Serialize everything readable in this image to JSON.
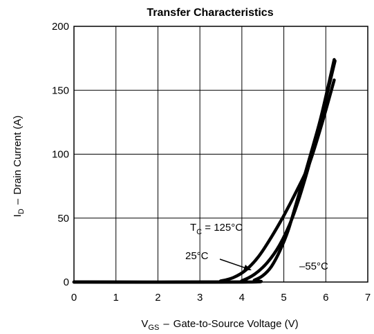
{
  "chart_data": {
    "type": "line",
    "title": "Transfer Characteristics",
    "xlabel": {
      "prefix": "V",
      "subscript": "GS",
      "text": "Gate-to-Source Voltage (V)"
    },
    "ylabel": {
      "prefix": "I",
      "subscript": "D",
      "text": "Drain Current (A)"
    },
    "xlim": [
      0,
      7
    ],
    "ylim": [
      0,
      200
    ],
    "xticks": [
      0,
      1,
      2,
      3,
      4,
      5,
      6,
      7
    ],
    "yticks": [
      0,
      50,
      100,
      150,
      200
    ],
    "grid": true,
    "series": [
      {
        "name": "T_C = 125°C",
        "x": [
          0,
          3.3,
          3.5,
          3.8,
          4.1,
          4.4,
          4.7,
          5.0,
          5.3,
          5.6,
          5.9,
          6.2
        ],
        "y": [
          0,
          0,
          0.8,
          3.5,
          9.5,
          20,
          35,
          52,
          71,
          92,
          123,
          158
        ]
      },
      {
        "name": "25°C",
        "x": [
          0,
          3.8,
          4.0,
          4.3,
          4.6,
          4.9,
          5.2,
          5.5,
          5.8,
          6.0,
          6.22
        ],
        "y": [
          0,
          0,
          1,
          6,
          15,
          29,
          50,
          80,
          116,
          143,
          173
        ]
      },
      {
        "name": "-55°C",
        "x": [
          0,
          4.1,
          4.3,
          4.5,
          4.7,
          4.9,
          5.1,
          5.3,
          5.5,
          5.7,
          5.9,
          6.2
        ],
        "y": [
          0,
          0,
          1.5,
          5,
          12,
          24,
          40,
          62,
          84,
          107,
          131,
          174
        ]
      }
    ],
    "annotations": {
      "tc_prefix": "T",
      "tc_subscript": "C",
      "tc_rest": " = 125°C",
      "mid": "25°C",
      "low": "–55°C"
    }
  }
}
